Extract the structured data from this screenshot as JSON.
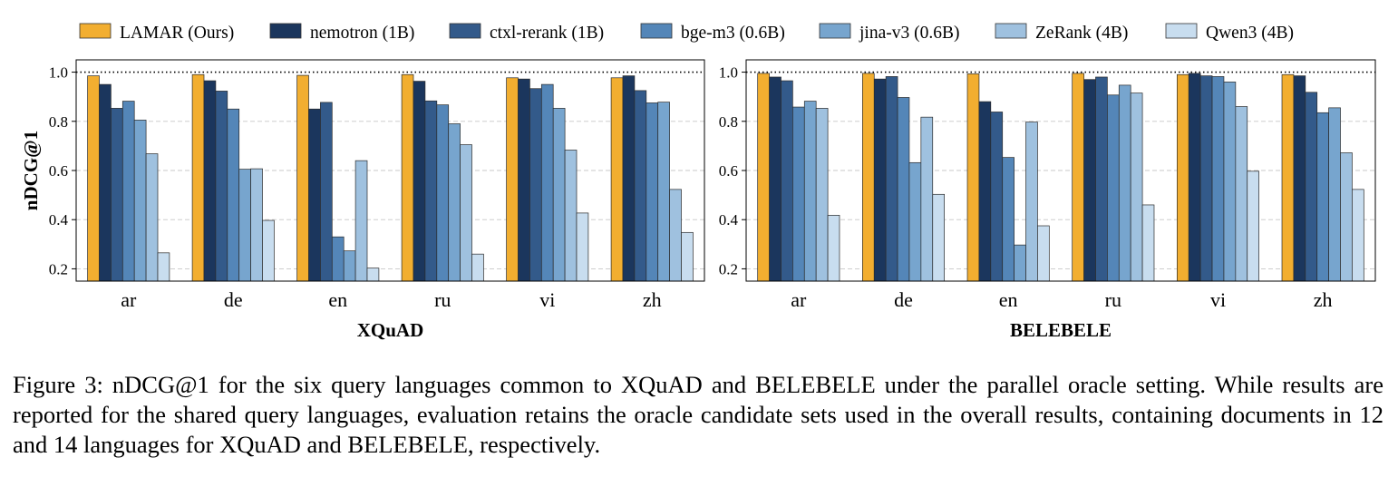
{
  "legend": [
    {
      "name": "LAMAR (Ours)",
      "color": "#F2AE30"
    },
    {
      "name": "nemotron (1B)",
      "color": "#1B365D"
    },
    {
      "name": "ctxl-rerank (1B)",
      "color": "#335A8A"
    },
    {
      "name": "bge-m3 (0.6B)",
      "color": "#5486B8"
    },
    {
      "name": "jina-v3 (0.6B)",
      "color": "#77A5CE"
    },
    {
      "name": "ZeRank (4B)",
      "color": "#9FC1DF"
    },
    {
      "name": "Qwen3 (4B)",
      "color": "#C8DDEF"
    }
  ],
  "chart_data": [
    {
      "type": "bar",
      "title": "XQuAD",
      "ylabel": "nDCG@1",
      "xlabel": "",
      "categories": [
        "ar",
        "de",
        "en",
        "ru",
        "vi",
        "zh"
      ],
      "ylim": [
        0.15,
        1.05
      ],
      "yticks": [
        0.2,
        0.4,
        0.6,
        0.8,
        1.0
      ],
      "ytick_labels": [
        "0.2",
        "0.4",
        "0.6",
        "0.8",
        "1.0"
      ],
      "grid": "horizontal dashed",
      "reference_line": 1.0,
      "series": [
        {
          "name": "LAMAR (Ours)",
          "values": [
            0.985,
            0.99,
            0.987,
            0.99,
            0.977,
            0.977
          ]
        },
        {
          "name": "nemotron (1B)",
          "values": [
            0.95,
            0.965,
            0.85,
            0.963,
            0.972,
            0.985
          ]
        },
        {
          "name": "ctxl-rerank (1B)",
          "values": [
            0.853,
            0.923,
            0.877,
            0.883,
            0.933,
            0.925
          ]
        },
        {
          "name": "bge-m3 (0.6B)",
          "values": [
            0.882,
            0.85,
            0.33,
            0.867,
            0.95,
            0.875
          ]
        },
        {
          "name": "jina-v3 (0.6B)",
          "values": [
            0.805,
            0.605,
            0.273,
            0.79,
            0.853,
            0.878
          ]
        },
        {
          "name": "ZeRank (4B)",
          "values": [
            0.668,
            0.607,
            0.64,
            0.705,
            0.683,
            0.523
          ]
        },
        {
          "name": "Qwen3 (4B)",
          "values": [
            0.265,
            0.397,
            0.203,
            0.26,
            0.427,
            0.348
          ]
        }
      ]
    },
    {
      "type": "bar",
      "title": "BELEBELE",
      "ylabel": "",
      "xlabel": "",
      "categories": [
        "ar",
        "de",
        "en",
        "ru",
        "vi",
        "zh"
      ],
      "ylim": [
        0.15,
        1.05
      ],
      "yticks": [
        0.2,
        0.4,
        0.6,
        0.8,
        1.0
      ],
      "ytick_labels": [
        "0.2",
        "0.4",
        "0.6",
        "0.8",
        "1.0"
      ],
      "grid": "horizontal dashed",
      "reference_line": 1.0,
      "series": [
        {
          "name": "LAMAR (Ours)",
          "values": [
            0.995,
            0.995,
            0.993,
            0.995,
            0.99,
            0.99
          ]
        },
        {
          "name": "nemotron (1B)",
          "values": [
            0.98,
            0.972,
            0.88,
            0.97,
            0.995,
            0.985
          ]
        },
        {
          "name": "ctxl-rerank (1B)",
          "values": [
            0.965,
            0.982,
            0.838,
            0.98,
            0.985,
            0.918
          ]
        },
        {
          "name": "bge-m3 (0.6B)",
          "values": [
            0.858,
            0.897,
            0.653,
            0.907,
            0.982,
            0.835
          ]
        },
        {
          "name": "jina-v3 (0.6B)",
          "values": [
            0.882,
            0.632,
            0.297,
            0.947,
            0.96,
            0.855
          ]
        },
        {
          "name": "ZeRank (4B)",
          "values": [
            0.853,
            0.817,
            0.797,
            0.915,
            0.86,
            0.672
          ]
        },
        {
          "name": "Qwen3 (4B)",
          "values": [
            0.418,
            0.503,
            0.375,
            0.46,
            0.597,
            0.523
          ]
        }
      ]
    }
  ],
  "caption": "Figure 3: nDCG@1 for the six query languages common to XQuAD and BELEBELE under the parallel oracle setting. While results are reported for the shared query languages, evaluation retains the oracle candidate sets used in the overall results, containing documents in 12 and 14 languages for XQuAD and BELEBELE, respectively."
}
